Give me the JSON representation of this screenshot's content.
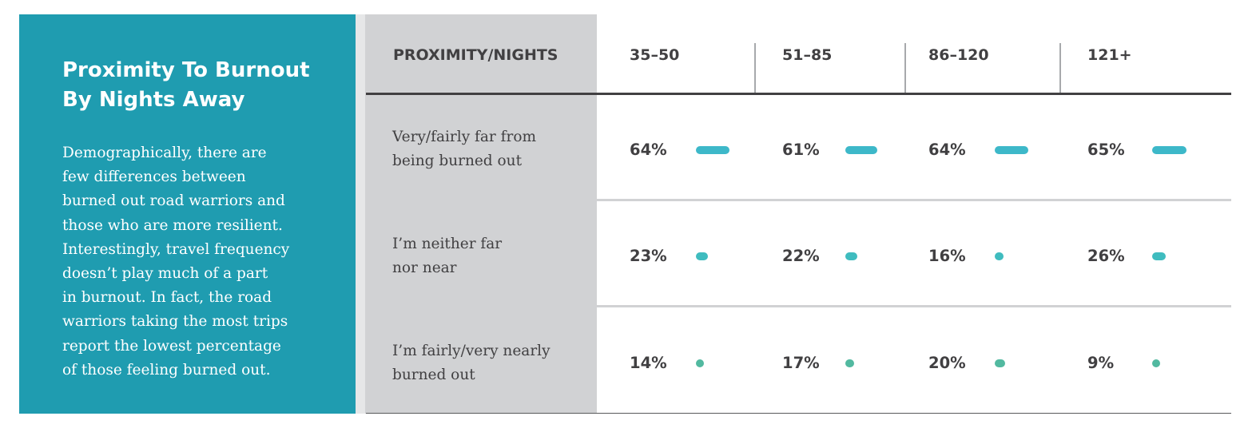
{
  "panel": {
    "title_line1": "Proximity To Burnout",
    "title_line2": "By Nights Away",
    "body_lines": [
      "Demographically, there are",
      "few differences between",
      "burned out road warriors and",
      "those who are more resilient.",
      "Interestingly, travel frequency",
      "doesn’t play much of a part",
      "in burnout. In fact, the road",
      "warriors taking the most trips",
      "report the lowest percentage",
      "of those feeling burned out."
    ]
  },
  "colors": {
    "panel_bg": "#1f9cb0",
    "label_col_bg": "#d1d2d4",
    "bar_row1": "#3db8c9",
    "bar_row2": "#3fbcbf",
    "bar_row3": "#52b9a0"
  },
  "chart_data": {
    "type": "table",
    "row_header": "PROXIMITY/NIGHTS",
    "columns": [
      "35–50",
      "51–85",
      "86–120",
      "121+"
    ],
    "rows": [
      {
        "label_lines": [
          "Very/fairly far from",
          "being burned out"
        ],
        "values": [
          64,
          61,
          64,
          65
        ],
        "display": [
          "64%",
          "61%",
          "64%",
          "65%"
        ]
      },
      {
        "label_lines": [
          "I’m neither far",
          "nor near"
        ],
        "values": [
          23,
          22,
          16,
          26
        ],
        "display": [
          "23%",
          "22%",
          "16%",
          "26%"
        ]
      },
      {
        "label_lines": [
          "I’m fairly/very nearly",
          "burned out"
        ],
        "values": [
          14,
          17,
          20,
          9
        ],
        "display": [
          "14%",
          "17%",
          "20%",
          "9%"
        ]
      }
    ]
  }
}
